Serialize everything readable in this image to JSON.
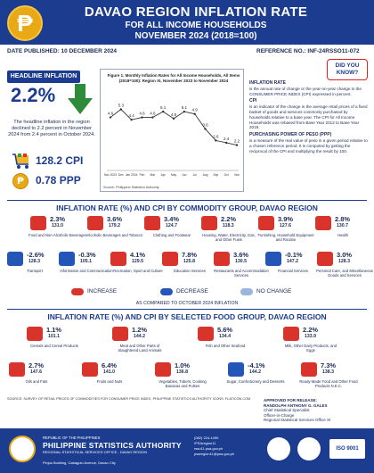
{
  "header": {
    "logo_symbol": "₱",
    "title": "DAVAO REGION INFLATION RATE",
    "subtitle": "FOR ALL INCOME HOUSEHOLDS",
    "period": "NOVEMBER 2024 (2018=100)",
    "date_published": "DATE PUBLISHED: 10 DECEMBER 2024",
    "reference_no": "REFERENCE NO.: INF-24RSSO11-072"
  },
  "headline": {
    "label": "HEADLINE INFLATION",
    "value": "2.2%",
    "text": "The headline inflation in the region declined to 2.2 percent in November 2024 from 2.4 percent in October 2024.",
    "cpi": "128.2 CPI",
    "ppp": "0.78 PPP"
  },
  "chart_data": {
    "type": "line",
    "title": "Figure 1. Monthly Inflation Rates for All Income Households, All Items (2018=100): Region XI, November 2023 to November 2024",
    "source": "Source: Philippine Statistics Authority",
    "categories": [
      "Nov 2023",
      "Dec",
      "Jan 2024",
      "Feb",
      "Mar",
      "Apr",
      "May",
      "Jun",
      "Jul",
      "Aug",
      "Sep",
      "Oct",
      "Nov"
    ],
    "values": [
      4.6,
      5.3,
      4.4,
      4.6,
      4.6,
      5.1,
      4.5,
      5.1,
      4.9,
      3.6,
      2.6,
      2.4,
      2.2
    ],
    "labels": [
      "4.6",
      "5.3",
      "4.4",
      "4.6",
      "4.6",
      "5.1",
      "4.5",
      "5.1",
      "4.9",
      "3.6",
      "2.6",
      "2.4",
      "2.2"
    ],
    "ylim": [
      0,
      6.5
    ],
    "grid": false
  },
  "notes": {
    "badge": "DID YOU KNOW?",
    "h1": "INFLATION RATE",
    "t1": "is the annual rate of change or the year-on-year change in the CONSUMER PRICE INDEX (CPI) expressed in percent.",
    "h2": "CPI",
    "t2": "is an indicator of the change in the average retail prices of a fixed basket of goods and services commonly purchased by households relative to a base year. The CPI for All Income Households was rebased from Base Year 2012 to Base Year 2018.",
    "h3": "PURCHASING POWER OF PESO (PPP)",
    "t3": "is a measure of the real value of peso in a given period relative to a chosen reference period. It is computed by getting the reciprocal of the CPI and multiplying the result by 100."
  },
  "commodity": {
    "title": "INFLATION RATE (%) AND CPI BY COMMODITY GROUP, DAVAO REGION",
    "row1": [
      {
        "rate": "2.3%",
        "cpi": "131.0",
        "name": "Food and Non-Alcoholic Beverages",
        "status": "inc"
      },
      {
        "rate": "3.6%",
        "cpi": "179.2",
        "name": "Alcoholic Beverages and Tobacco",
        "status": "inc"
      },
      {
        "rate": "3.4%",
        "cpi": "124.7",
        "name": "Clothing and Footwear",
        "status": "inc"
      },
      {
        "rate": "2.2%",
        "cpi": "118.3",
        "name": "Housing, Water, Electricity, Gas, and Other Fuels",
        "status": "inc"
      },
      {
        "rate": "3.9%",
        "cpi": "127.6",
        "name": "Furnishing, Household Equipment and Routine",
        "status": "inc"
      },
      {
        "rate": "2.8%",
        "cpi": "130.7",
        "name": "Health",
        "status": "inc"
      }
    ],
    "row2": [
      {
        "rate": "-2.6%",
        "cpi": "128.3",
        "name": "Transport",
        "status": "dec"
      },
      {
        "rate": "-0.3%",
        "cpi": "105.1",
        "name": "Information and Communication",
        "status": "dec"
      },
      {
        "rate": "4.1%",
        "cpi": "129.5",
        "name": "Recreation, Sport and Culture",
        "status": "inc"
      },
      {
        "rate": "7.8%",
        "cpi": "125.8",
        "name": "Education Services",
        "status": "inc"
      },
      {
        "rate": "3.6%",
        "cpi": "130.5",
        "name": "Restaurants and Accommodation Services",
        "status": "inc"
      },
      {
        "rate": "-0.1%",
        "cpi": "147.2",
        "name": "Financial Services",
        "status": "dec"
      },
      {
        "rate": "3.0%",
        "cpi": "128.3",
        "name": "Personal Care, and Miscellaneous Goods and Services",
        "status": "inc"
      }
    ]
  },
  "legend": {
    "increase": "INCREASE",
    "decrease": "DECREASE",
    "no_change": "NO CHANGE",
    "compared": "AS COMPARED TO OCTOBER 2024 INFLATION"
  },
  "food": {
    "title": "INFLATION RATE (%) AND CPI BY SELECTED FOOD GROUP, DAVAO REGION",
    "row1": [
      {
        "rate": "1.1%",
        "cpi": "101.1",
        "name": "Cereals and Cereal Products",
        "status": "inc"
      },
      {
        "rate": "1.2%",
        "cpi": "144.2",
        "name": "Meat and Other Parts of Slaughtered Land Animals",
        "status": "inc"
      },
      {
        "rate": "5.6%",
        "cpi": "134.4",
        "name": "Fish and Other Seafood",
        "status": "inc"
      },
      {
        "rate": "2.2%",
        "cpi": "133.9",
        "name": "Milk, Other Dairy Products, and Eggs",
        "status": "inc"
      }
    ],
    "row2": [
      {
        "rate": "2.7%",
        "cpi": "147.6",
        "name": "Oils and Fats",
        "status": "inc"
      },
      {
        "rate": "6.4%",
        "cpi": "141.0",
        "name": "Fruits and Nuts",
        "status": "inc"
      },
      {
        "rate": "1.0%",
        "cpi": "136.8",
        "name": "Vegetables, Tubers, Cooking Bananas and Pulses",
        "status": "inc"
      },
      {
        "rate": "-4.1%",
        "cpi": "144.2",
        "name": "Sugar, Confectionery and Desserts",
        "status": "dec"
      },
      {
        "rate": "7.3%",
        "cpi": "138.3",
        "name": "Ready-Made Food and Other Food Products N.E.C.",
        "status": "inc"
      }
    ]
  },
  "source_note": "SOURCE: SURVEY OF RETAIL PRICES OF COMMODITIES FOR CONSUMER PRICE INDEX, PHILIPPINE STATISTICS AUTHORITY ICONS: FLATICON.COM",
  "approved": {
    "label": "APPROVED FOR RELEASE:",
    "name": "RANDOLPH ANTHONY G. GALES",
    "position": "Chief Statistical Specialist",
    "office": "Officer-in-Charge",
    "office2": "Regional Statistical Services Office XI"
  },
  "footer": {
    "republic": "REPUBLIC OF THE PHILIPPINES",
    "agency": "PHILIPPINE STATISTICS AUTHORITY",
    "office": "REGIONAL STATISTICAL SERVICES OFFICE - DAVAO REGION",
    "address": "Pinjus Building, Cabaguio Avenue, Davao City",
    "phone": "(082) 224-1490",
    "facebook": "/PSAregion11",
    "website": "rsso11.psa.gov.ph",
    "email": "psaregion11@psa.gov.ph",
    "iso": "ISO 9001"
  },
  "colors": {
    "increase": "#d9342b",
    "decrease": "#2456b8",
    "no_change": "#9ab5de",
    "brand": "#1c3c8f"
  }
}
